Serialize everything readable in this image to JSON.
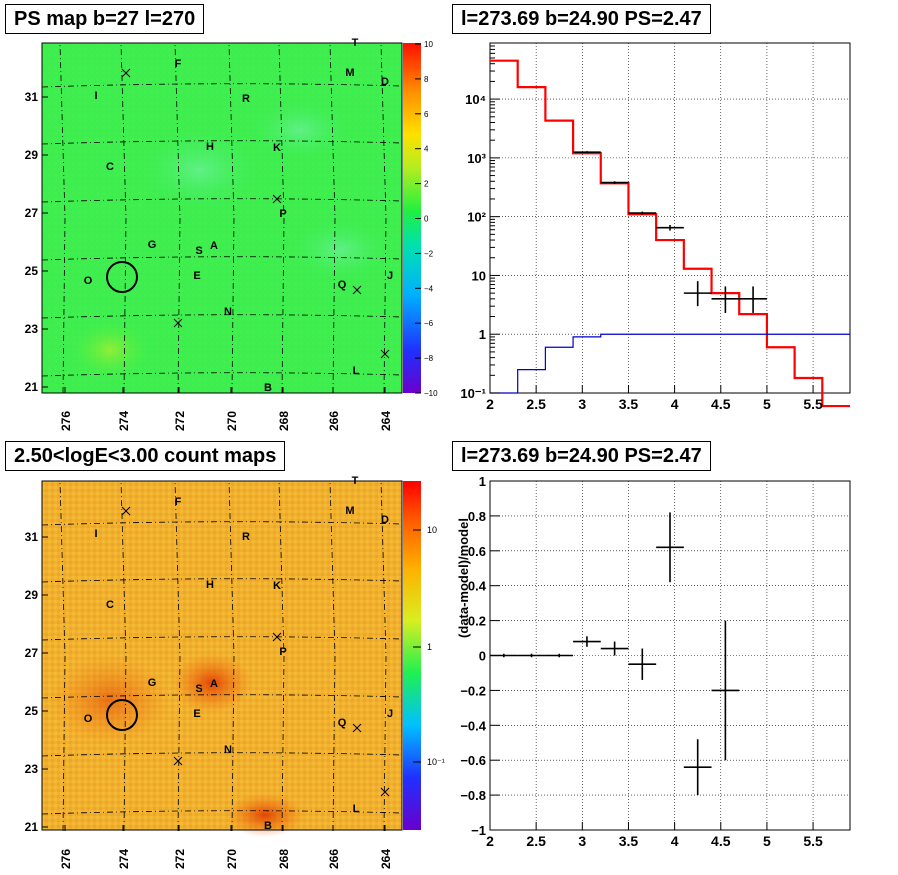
{
  "panels": {
    "tl_title": "PS map b=27 l=270",
    "tr_title": "l=273.69 b=24.90 PS=2.47",
    "bl_title": "2.50<logE<3.00 count maps",
    "br_title": "l=273.69 b=24.90 PS=2.47"
  },
  "colors": {
    "ps_map_bg": "#3af050",
    "count_map_bg": "#f2b030",
    "model_line": "#ff0000",
    "background_line": "#0000cc",
    "data": "#000000"
  },
  "maps": {
    "x_ticks": [
      "276",
      "274",
      "272",
      "270",
      "268",
      "266",
      "264"
    ],
    "y_ticks": [
      "31",
      "29",
      "27",
      "25",
      "23",
      "21"
    ],
    "sources": [
      "T",
      "F",
      "M",
      "D",
      "I",
      "R",
      "H",
      "K",
      "C",
      "P",
      "G",
      "S",
      "A",
      "J",
      "O",
      "E",
      "Q",
      "N",
      "L",
      "B"
    ],
    "ps_colorbar": {
      "ticks": [
        "10",
        "8",
        "6",
        "4",
        "2",
        "0",
        "−2",
        "−4",
        "−6",
        "−8",
        "−10"
      ],
      "range": [
        -10,
        10
      ]
    },
    "count_colorbar": {
      "ticks": [
        "10",
        "1",
        "10⁻¹"
      ]
    }
  },
  "chart_data": [
    {
      "type": "line",
      "panel": "PS map",
      "title": "PS map b=27 l=270",
      "xlabel": "",
      "ylabel": "",
      "x_range": [
        276.8,
        263.6
      ],
      "y_range": [
        20.8,
        32.8
      ]
    },
    {
      "type": "line",
      "panel": "spectrum",
      "title": "l=273.69 b=24.90 PS=2.47",
      "xlabel": "",
      "ylabel": "",
      "xlim": [
        2,
        5.9
      ],
      "ylog": true,
      "ylim": [
        0.1,
        90000
      ],
      "x_ticks": [
        "2",
        "2.5",
        "3",
        "3.5",
        "4",
        "4.5",
        "5",
        "5.5"
      ],
      "y_ticks": [
        "10⁻¹",
        "1",
        "10",
        "10²",
        "10³",
        "10⁴"
      ],
      "bin_edges": [
        2.0,
        2.3,
        2.6,
        2.9,
        3.2,
        3.5,
        3.8,
        4.1,
        4.4,
        4.7,
        5.0,
        5.3,
        5.6,
        5.9
      ],
      "series": [
        {
          "name": "",
          "style": "step",
          "color": "#ff0000",
          "values": [
            45000,
            16000,
            4300,
            1200,
            370,
            110,
            40,
            13,
            5,
            2.2,
            0.6,
            0.18,
            0.06
          ]
        },
        {
          "name": "",
          "style": "step",
          "color": "#0000cc",
          "values": [
            0.1,
            0.25,
            0.6,
            0.9,
            1,
            1,
            1,
            1,
            1,
            1,
            1,
            1,
            1
          ]
        },
        {
          "name": "",
          "style": "errorbar",
          "color": "#000000",
          "points": [
            {
              "x": 3.05,
              "y": 1250,
              "xerr": 0.15,
              "ylo": 1200,
              "yhi": 1300
            },
            {
              "x": 3.35,
              "y": 380,
              "xerr": 0.15,
              "ylo": 360,
              "yhi": 400
            },
            {
              "x": 3.65,
              "y": 115,
              "xerr": 0.15,
              "ylo": 108,
              "yhi": 122
            },
            {
              "x": 3.95,
              "y": 65,
              "xerr": 0.15,
              "ylo": 58,
              "yhi": 72
            },
            {
              "x": 4.25,
              "y": 5,
              "xerr": 0.15,
              "ylo": 3,
              "yhi": 8
            },
            {
              "x": 4.55,
              "y": 4,
              "xerr": 0.15,
              "ylo": 2.3,
              "yhi": 6.5
            },
            {
              "x": 4.85,
              "y": 4,
              "xerr": 0.15,
              "ylo": 2.3,
              "yhi": 6.5
            }
          ]
        }
      ]
    },
    {
      "type": "heatmap",
      "panel": "count map",
      "title": "2.50<logE<3.00 count maps",
      "xlabel": "",
      "ylabel": "",
      "x_range": [
        276.8,
        263.6
      ],
      "y_range": [
        20.8,
        32.8
      ]
    },
    {
      "type": "scatter",
      "panel": "residuals",
      "title": "l=273.69 b=24.90 PS=2.47",
      "xlabel": "",
      "ylabel": "(data-model)/model",
      "xlim": [
        2,
        5.9
      ],
      "ylim": [
        -1,
        1
      ],
      "x_ticks": [
        "2",
        "2.5",
        "3",
        "3.5",
        "4",
        "4.5",
        "5",
        "5.5"
      ],
      "y_ticks": [
        "−1",
        "−0.8",
        "−0.6",
        "−0.4",
        "−0.2",
        "0",
        "0.2",
        "0.4",
        "0.6",
        "0.8",
        "1"
      ],
      "series": [
        {
          "name": "",
          "style": "errorbar",
          "color": "#000000",
          "points": [
            {
              "x": 2.15,
              "y": 0,
              "xerr": 0.15,
              "ylo": -0.01,
              "yhi": 0.01
            },
            {
              "x": 2.45,
              "y": 0,
              "xerr": 0.15,
              "ylo": -0.01,
              "yhi": 0.01
            },
            {
              "x": 2.75,
              "y": 0,
              "xerr": 0.15,
              "ylo": -0.01,
              "yhi": 0.01
            },
            {
              "x": 3.05,
              "y": 0.08,
              "xerr": 0.15,
              "ylo": 0.05,
              "yhi": 0.11
            },
            {
              "x": 3.35,
              "y": 0.04,
              "xerr": 0.15,
              "ylo": 0.0,
              "yhi": 0.08
            },
            {
              "x": 3.65,
              "y": -0.05,
              "xerr": 0.15,
              "ylo": -0.14,
              "yhi": 0.04
            },
            {
              "x": 3.95,
              "y": 0.62,
              "xerr": 0.15,
              "ylo": 0.42,
              "yhi": 0.82
            },
            {
              "x": 4.25,
              "y": -0.64,
              "xerr": 0.15,
              "ylo": -0.8,
              "yhi": -0.48
            },
            {
              "x": 4.55,
              "y": -0.2,
              "xerr": 0.15,
              "ylo": -0.6,
              "yhi": 0.2
            }
          ]
        }
      ]
    }
  ]
}
